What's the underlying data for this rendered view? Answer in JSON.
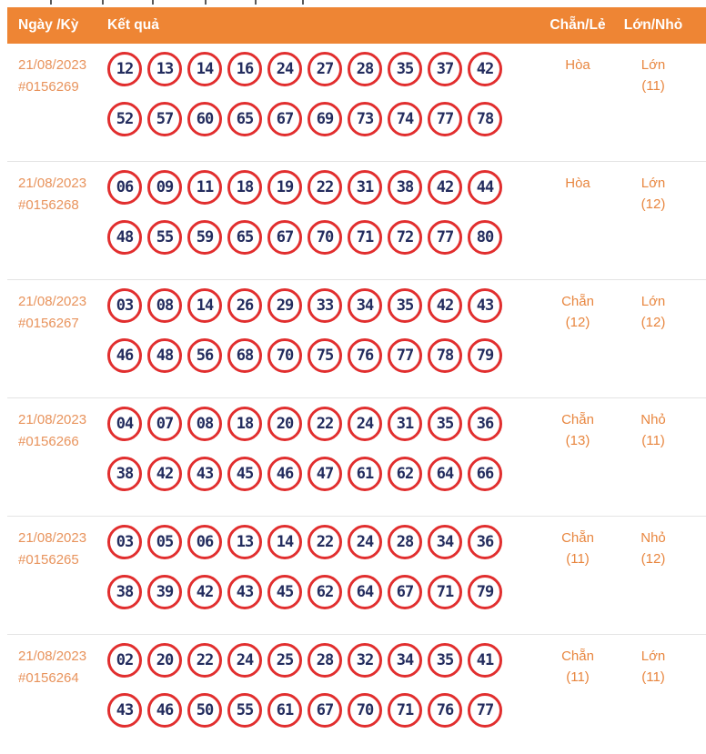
{
  "top_fragment_marks": [
    55,
    112,
    167,
    225,
    280,
    332
  ],
  "colors": {
    "header_bg": "#ee8534",
    "header_text": "#ffffff",
    "date_text": "#e8935c",
    "value_text": "#e8863f",
    "ball_border": "#e12e2e",
    "ball_number": "#232c5e",
    "row_divider": "#e4e4e4"
  },
  "table": {
    "columns": {
      "date": "Ngày /Kỳ",
      "result": "Kết quả",
      "even_odd": "Chẵn/Lẻ",
      "big_small": "Lớn/Nhỏ"
    },
    "rows": [
      {
        "date": "21/08/2023",
        "draw_id": "#0156269",
        "numbers": [
          [
            "12",
            "13",
            "14",
            "16",
            "24",
            "27",
            "28",
            "35",
            "37",
            "42"
          ],
          [
            "52",
            "57",
            "60",
            "65",
            "67",
            "69",
            "73",
            "74",
            "77",
            "78"
          ]
        ],
        "even_odd": {
          "label": "Hòa",
          "count": ""
        },
        "big_small": {
          "label": "Lớn",
          "count": "(11)"
        }
      },
      {
        "date": "21/08/2023",
        "draw_id": "#0156268",
        "numbers": [
          [
            "06",
            "09",
            "11",
            "18",
            "19",
            "22",
            "31",
            "38",
            "42",
            "44"
          ],
          [
            "48",
            "55",
            "59",
            "65",
            "67",
            "70",
            "71",
            "72",
            "77",
            "80"
          ]
        ],
        "even_odd": {
          "label": "Hòa",
          "count": ""
        },
        "big_small": {
          "label": "Lớn",
          "count": "(12)"
        }
      },
      {
        "date": "21/08/2023",
        "draw_id": "#0156267",
        "numbers": [
          [
            "03",
            "08",
            "14",
            "26",
            "29",
            "33",
            "34",
            "35",
            "42",
            "43"
          ],
          [
            "46",
            "48",
            "56",
            "68",
            "70",
            "75",
            "76",
            "77",
            "78",
            "79"
          ]
        ],
        "even_odd": {
          "label": "Chẵn",
          "count": "(12)"
        },
        "big_small": {
          "label": "Lớn",
          "count": "(12)"
        }
      },
      {
        "date": "21/08/2023",
        "draw_id": "#0156266",
        "numbers": [
          [
            "04",
            "07",
            "08",
            "18",
            "20",
            "22",
            "24",
            "31",
            "35",
            "36"
          ],
          [
            "38",
            "42",
            "43",
            "45",
            "46",
            "47",
            "61",
            "62",
            "64",
            "66"
          ]
        ],
        "even_odd": {
          "label": "Chẵn",
          "count": "(13)"
        },
        "big_small": {
          "label": "Nhỏ",
          "count": "(11)"
        }
      },
      {
        "date": "21/08/2023",
        "draw_id": "#0156265",
        "numbers": [
          [
            "03",
            "05",
            "06",
            "13",
            "14",
            "22",
            "24",
            "28",
            "34",
            "36"
          ],
          [
            "38",
            "39",
            "42",
            "43",
            "45",
            "62",
            "64",
            "67",
            "71",
            "79"
          ]
        ],
        "even_odd": {
          "label": "Chẵn",
          "count": "(11)"
        },
        "big_small": {
          "label": "Nhỏ",
          "count": "(12)"
        }
      },
      {
        "date": "21/08/2023",
        "draw_id": "#0156264",
        "numbers": [
          [
            "02",
            "20",
            "22",
            "24",
            "25",
            "28",
            "32",
            "34",
            "35",
            "41"
          ],
          [
            "43",
            "46",
            "50",
            "55",
            "61",
            "67",
            "70",
            "71",
            "76",
            "77"
          ]
        ],
        "even_odd": {
          "label": "Chẵn",
          "count": "(11)"
        },
        "big_small": {
          "label": "Lớn",
          "count": "(11)"
        }
      }
    ]
  }
}
